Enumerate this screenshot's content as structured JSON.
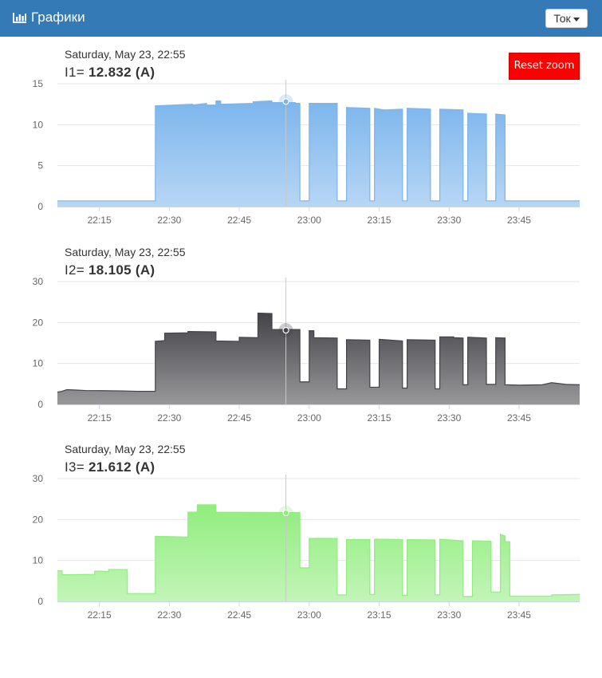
{
  "header": {
    "title": "Графики",
    "icon": "bar-chart-icon",
    "dropdown_label": "Ток",
    "background": "#337ab7"
  },
  "reset_zoom_label": "Reset zoom",
  "charts": [
    {
      "tooltip_date": "Saturday, May 23, 22:55",
      "value_label": "I1=",
      "value_text": "12.832 (A)",
      "color": "#7cb5ec",
      "crosshair_x": "22:55",
      "crosshair_y": 12.832
    },
    {
      "tooltip_date": "Saturday, May 23, 22:55",
      "value_label": "I2=",
      "value_text": "18.105 (A)",
      "color": "#434348",
      "crosshair_x": "22:55",
      "crosshair_y": 18.105
    },
    {
      "tooltip_date": "Saturday, May 23, 22:55",
      "value_label": "I3=",
      "value_text": "21.612 (A)",
      "color": "#90ed7d",
      "crosshair_x": "22:55",
      "crosshair_y": 21.612
    }
  ],
  "chart_data": [
    {
      "type": "area",
      "x_range": [
        "22:06",
        "23:58"
      ],
      "ylim": [
        0,
        15
      ],
      "yticks": [
        0,
        5,
        10,
        15
      ],
      "xticks": [
        "22:15",
        "22:30",
        "22:45",
        "23:00",
        "23:15",
        "23:30",
        "23:45"
      ],
      "grid": true,
      "series": [
        {
          "color": "#7cb5ec",
          "points": [
            [
              "22:06",
              0.7
            ],
            [
              "22:27",
              0.7
            ],
            [
              "22:27",
              12.3
            ],
            [
              "22:35",
              12.5
            ],
            [
              "22:35",
              12.4
            ],
            [
              "22:38",
              12.6
            ],
            [
              "22:38",
              12.4
            ],
            [
              "22:40",
              12.4
            ],
            [
              "22:40",
              12.9
            ],
            [
              "22:41",
              12.9
            ],
            [
              "22:41",
              12.5
            ],
            [
              "22:48",
              12.6
            ],
            [
              "22:48",
              12.8
            ],
            [
              "22:52",
              12.9
            ],
            [
              "22:52",
              12.7
            ],
            [
              "22:57",
              12.7
            ],
            [
              "22:57",
              12.6
            ],
            [
              "22:58",
              12.6
            ],
            [
              "22:58",
              0.7
            ],
            [
              "23:00",
              0.7
            ],
            [
              "23:00",
              12.6
            ],
            [
              "23:06",
              12.6
            ],
            [
              "23:06",
              0.7
            ],
            [
              "23:08",
              0.7
            ],
            [
              "23:08",
              12.1
            ],
            [
              "23:13",
              12.0
            ],
            [
              "23:13",
              0.7
            ],
            [
              "23:14",
              0.7
            ],
            [
              "23:14",
              12.0
            ],
            [
              "23:16",
              11.8
            ],
            [
              "23:20",
              11.9
            ],
            [
              "23:20",
              0.7
            ],
            [
              "23:21",
              0.7
            ],
            [
              "23:21",
              12.0
            ],
            [
              "23:26",
              11.9
            ],
            [
              "23:26",
              0.7
            ],
            [
              "23:28",
              0.7
            ],
            [
              "23:28",
              11.9
            ],
            [
              "23:33",
              11.8
            ],
            [
              "23:33",
              0.7
            ],
            [
              "23:34",
              0.7
            ],
            [
              "23:34",
              11.4
            ],
            [
              "23:38",
              11.3
            ],
            [
              "23:38",
              0.7
            ],
            [
              "23:40",
              0.7
            ],
            [
              "23:40",
              11.3
            ],
            [
              "23:42",
              11.2
            ],
            [
              "23:42",
              0.7
            ],
            [
              "23:58",
              0.7
            ]
          ]
        }
      ]
    },
    {
      "type": "area",
      "x_range": [
        "22:06",
        "23:58"
      ],
      "ylim": [
        0,
        30
      ],
      "yticks": [
        0,
        10,
        20,
        30
      ],
      "xticks": [
        "22:15",
        "22:30",
        "22:45",
        "23:00",
        "23:15",
        "23:30",
        "23:45"
      ],
      "grid": true,
      "series": [
        {
          "color": "#434348",
          "points": [
            [
              "22:06",
              3.0
            ],
            [
              "22:07",
              3.2
            ],
            [
              "22:08",
              3.6
            ],
            [
              "22:10",
              3.5
            ],
            [
              "22:12",
              3.4
            ],
            [
              "22:20",
              3.3
            ],
            [
              "22:23",
              3.2
            ],
            [
              "22:27",
              3.2
            ],
            [
              "22:27",
              15.4
            ],
            [
              "22:29",
              15.6
            ],
            [
              "22:29",
              17.4
            ],
            [
              "22:34",
              17.5
            ],
            [
              "22:34",
              17.8
            ],
            [
              "22:40",
              17.7
            ],
            [
              "22:40",
              15.5
            ],
            [
              "22:45",
              15.4
            ],
            [
              "22:45",
              16.4
            ],
            [
              "22:49",
              16.3
            ],
            [
              "22:49",
              22.3
            ],
            [
              "22:52",
              22.2
            ],
            [
              "22:52",
              18.3
            ],
            [
              "22:58",
              18.3
            ],
            [
              "22:58",
              5.5
            ],
            [
              "23:00",
              5.5
            ],
            [
              "23:00",
              18.0
            ],
            [
              "23:01",
              18.0
            ],
            [
              "23:01",
              16.3
            ],
            [
              "23:06",
              16.2
            ],
            [
              "23:06",
              3.8
            ],
            [
              "23:08",
              3.8
            ],
            [
              "23:08",
              15.8
            ],
            [
              "23:13",
              15.7
            ],
            [
              "23:13",
              4.2
            ],
            [
              "23:15",
              4.2
            ],
            [
              "23:15",
              15.9
            ],
            [
              "23:20",
              15.5
            ],
            [
              "23:20",
              4.0
            ],
            [
              "23:21",
              4.0
            ],
            [
              "23:21",
              15.8
            ],
            [
              "23:27",
              15.7
            ],
            [
              "23:27",
              3.8
            ],
            [
              "23:28",
              3.8
            ],
            [
              "23:28",
              16.5
            ],
            [
              "23:31",
              16.5
            ],
            [
              "23:31",
              16.3
            ],
            [
              "23:33",
              16.2
            ],
            [
              "23:33",
              4.8
            ],
            [
              "23:34",
              4.8
            ],
            [
              "23:34",
              16.4
            ],
            [
              "23:38",
              16.2
            ],
            [
              "23:38",
              4.9
            ],
            [
              "23:40",
              4.9
            ],
            [
              "23:40",
              16.3
            ],
            [
              "23:42",
              16.2
            ],
            [
              "23:42",
              4.8
            ],
            [
              "23:45",
              4.7
            ],
            [
              "23:50",
              4.8
            ],
            [
              "23:52",
              5.3
            ],
            [
              "23:55",
              4.9
            ],
            [
              "23:58",
              4.8
            ]
          ]
        }
      ]
    },
    {
      "type": "area",
      "x_range": [
        "22:06",
        "23:58"
      ],
      "ylim": [
        0,
        30
      ],
      "yticks": [
        0,
        10,
        20,
        30
      ],
      "xticks": [
        "22:15",
        "22:30",
        "22:45",
        "23:00",
        "23:15",
        "23:30",
        "23:45"
      ],
      "grid": true,
      "series": [
        {
          "color": "#90ed7d",
          "points": [
            [
              "22:06",
              7.5
            ],
            [
              "22:07",
              7.5
            ],
            [
              "22:07",
              6.5
            ],
            [
              "22:14",
              6.6
            ],
            [
              "22:14",
              7.4
            ],
            [
              "22:17",
              7.3
            ],
            [
              "22:17",
              7.8
            ],
            [
              "22:21",
              7.8
            ],
            [
              "22:21",
              1.9
            ],
            [
              "22:27",
              1.9
            ],
            [
              "22:27",
              15.9
            ],
            [
              "22:34",
              15.7
            ],
            [
              "22:34",
              21.8
            ],
            [
              "22:36",
              21.8
            ],
            [
              "22:36",
              23.6
            ],
            [
              "22:40",
              23.6
            ],
            [
              "22:40",
              21.8
            ],
            [
              "22:58",
              21.7
            ],
            [
              "22:58",
              8.2
            ],
            [
              "23:00",
              8.2
            ],
            [
              "23:00",
              15.4
            ],
            [
              "23:06",
              15.4
            ],
            [
              "23:06",
              1.6
            ],
            [
              "23:08",
              1.6
            ],
            [
              "23:08",
              15.1
            ],
            [
              "23:13",
              15.1
            ],
            [
              "23:13",
              1.7
            ],
            [
              "23:14",
              1.7
            ],
            [
              "23:14",
              15.2
            ],
            [
              "23:20",
              15.1
            ],
            [
              "23:20",
              1.5
            ],
            [
              "23:21",
              1.5
            ],
            [
              "23:21",
              15.1
            ],
            [
              "23:27",
              15.0
            ],
            [
              "23:27",
              1.6
            ],
            [
              "23:28",
              1.6
            ],
            [
              "23:28",
              15.2
            ],
            [
              "23:33",
              14.8
            ],
            [
              "23:33",
              1.2
            ],
            [
              "23:35",
              1.2
            ],
            [
              "23:35",
              14.8
            ],
            [
              "23:39",
              14.7
            ],
            [
              "23:39",
              2.3
            ],
            [
              "23:41",
              2.3
            ],
            [
              "23:41",
              16.4
            ],
            [
              "23:42",
              16.0
            ],
            [
              "23:42",
              14.6
            ],
            [
              "23:43",
              14.6
            ],
            [
              "23:43",
              1.3
            ],
            [
              "23:52",
              1.3
            ],
            [
              "23:52",
              1.6
            ],
            [
              "23:58",
              1.7
            ]
          ]
        }
      ]
    }
  ]
}
